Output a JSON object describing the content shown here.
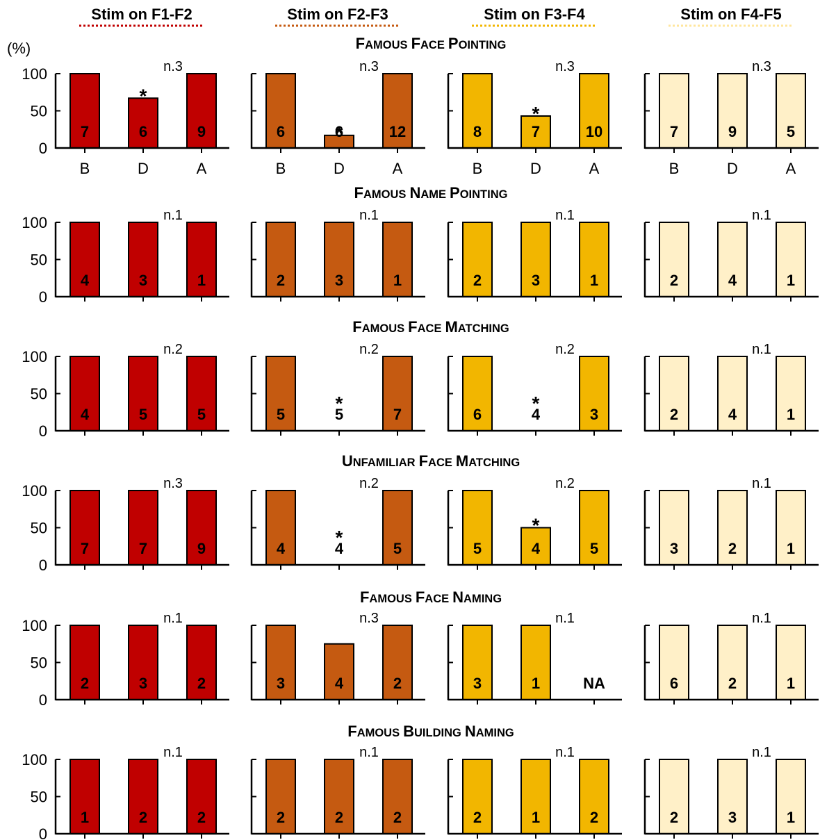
{
  "figure": {
    "y_unit_label": "(%)",
    "x_categories": [
      "B",
      "D",
      "A"
    ],
    "conditions": [
      {
        "label": "Stim on F1-F2",
        "color": "#c00000",
        "underline_color": "#c00000"
      },
      {
        "label": "Stim on F2-F3",
        "color": "#c55a11",
        "underline_color": "#c55a11"
      },
      {
        "label": "Stim on F3-F4",
        "color": "#f2b600",
        "underline_color": "#f2b600"
      },
      {
        "label": "Stim on F4-F5",
        "color": "#fff0c8",
        "underline_color": "#ffe69c"
      }
    ],
    "y_ticks": [
      "100",
      "50",
      "0"
    ]
  },
  "chart_data": {
    "type": "bar",
    "ylim": [
      0,
      100
    ],
    "ylabel": "(%)",
    "categories": [
      "B",
      "D",
      "A"
    ],
    "series": [
      "Stim on F1-F2",
      "Stim on F2-F3",
      "Stim on F3-F4",
      "Stim on F4-F5"
    ],
    "tasks": [
      {
        "title": "Famous Face Pointing",
        "panels": [
          {
            "n": "n.3",
            "values": [
              100,
              67,
              100
            ],
            "counts": [
              "7",
              "6",
              "9"
            ],
            "stars": [
              false,
              true,
              false
            ]
          },
          {
            "n": "n.3",
            "values": [
              100,
              17,
              100
            ],
            "counts": [
              "6",
              "6",
              "12"
            ],
            "stars": [
              false,
              true,
              false
            ]
          },
          {
            "n": "n.3",
            "values": [
              100,
              43,
              100
            ],
            "counts": [
              "8",
              "7",
              "10"
            ],
            "stars": [
              false,
              true,
              false
            ]
          },
          {
            "n": "n.3",
            "values": [
              100,
              100,
              100
            ],
            "counts": [
              "7",
              "9",
              "5"
            ],
            "stars": [
              false,
              false,
              false
            ]
          }
        ]
      },
      {
        "title": "Famous Name Pointing",
        "panels": [
          {
            "n": "n.1",
            "values": [
              100,
              100,
              100
            ],
            "counts": [
              "4",
              "3",
              "1"
            ],
            "stars": [
              false,
              false,
              false
            ]
          },
          {
            "n": "n.1",
            "values": [
              100,
              100,
              100
            ],
            "counts": [
              "2",
              "3",
              "1"
            ],
            "stars": [
              false,
              false,
              false
            ]
          },
          {
            "n": "n.1",
            "values": [
              100,
              100,
              100
            ],
            "counts": [
              "2",
              "3",
              "1"
            ],
            "stars": [
              false,
              false,
              false
            ]
          },
          {
            "n": "n.1",
            "values": [
              100,
              100,
              100
            ],
            "counts": [
              "2",
              "4",
              "1"
            ],
            "stars": [
              false,
              false,
              false
            ]
          }
        ]
      },
      {
        "title": "Famous Face Matching",
        "panels": [
          {
            "n": "n.2",
            "values": [
              100,
              100,
              100
            ],
            "counts": [
              "4",
              "5",
              "5"
            ],
            "stars": [
              false,
              false,
              false
            ]
          },
          {
            "n": "n.2",
            "values": [
              100,
              0,
              100
            ],
            "counts": [
              "5",
              "5",
              "7"
            ],
            "stars": [
              false,
              true,
              false
            ]
          },
          {
            "n": "n.2",
            "values": [
              100,
              0,
              100
            ],
            "counts": [
              "6",
              "4",
              "3"
            ],
            "stars": [
              false,
              true,
              false
            ]
          },
          {
            "n": "n.1",
            "values": [
              100,
              100,
              100
            ],
            "counts": [
              "2",
              "4",
              "1"
            ],
            "stars": [
              false,
              false,
              false
            ]
          }
        ]
      },
      {
        "title": "Unfamiliar Face Matching",
        "panels": [
          {
            "n": "n.3",
            "values": [
              100,
              100,
              100
            ],
            "counts": [
              "7",
              "7",
              "9"
            ],
            "stars": [
              false,
              false,
              false
            ]
          },
          {
            "n": "n.2",
            "values": [
              100,
              0,
              100
            ],
            "counts": [
              "4",
              "4",
              "5"
            ],
            "stars": [
              false,
              true,
              false
            ]
          },
          {
            "n": "n.2",
            "values": [
              100,
              50,
              100
            ],
            "counts": [
              "5",
              "4",
              "5"
            ],
            "stars": [
              false,
              true,
              false
            ]
          },
          {
            "n": "n.1",
            "values": [
              100,
              100,
              100
            ],
            "counts": [
              "3",
              "2",
              "1"
            ],
            "stars": [
              false,
              false,
              false
            ]
          }
        ]
      },
      {
        "title": "Famous Face Naming",
        "panels": [
          {
            "n": "n.1",
            "values": [
              100,
              100,
              100
            ],
            "counts": [
              "2",
              "3",
              "2"
            ],
            "stars": [
              false,
              false,
              false
            ]
          },
          {
            "n": "n.3",
            "values": [
              100,
              75,
              100
            ],
            "counts": [
              "3",
              "4",
              "2"
            ],
            "stars": [
              false,
              false,
              false
            ]
          },
          {
            "n": "n.1",
            "values": [
              100,
              100,
              null
            ],
            "counts": [
              "3",
              "1",
              "NA"
            ],
            "stars": [
              false,
              false,
              false
            ]
          },
          {
            "n": "n.1",
            "values": [
              100,
              100,
              100
            ],
            "counts": [
              "6",
              "2",
              "1"
            ],
            "stars": [
              false,
              false,
              false
            ]
          }
        ]
      },
      {
        "title": "Famous Building Naming",
        "panels": [
          {
            "n": "n.1",
            "values": [
              100,
              100,
              100
            ],
            "counts": [
              "1",
              "2",
              "2"
            ],
            "stars": [
              false,
              false,
              false
            ]
          },
          {
            "n": "n.1",
            "values": [
              100,
              100,
              100
            ],
            "counts": [
              "2",
              "2",
              "2"
            ],
            "stars": [
              false,
              false,
              false
            ]
          },
          {
            "n": "n.1",
            "values": [
              100,
              100,
              100
            ],
            "counts": [
              "2",
              "1",
              "2"
            ],
            "stars": [
              false,
              false,
              false
            ]
          },
          {
            "n": "n.1",
            "values": [
              100,
              100,
              100
            ],
            "counts": [
              "2",
              "3",
              "1"
            ],
            "stars": [
              false,
              false,
              false
            ]
          }
        ]
      }
    ]
  }
}
